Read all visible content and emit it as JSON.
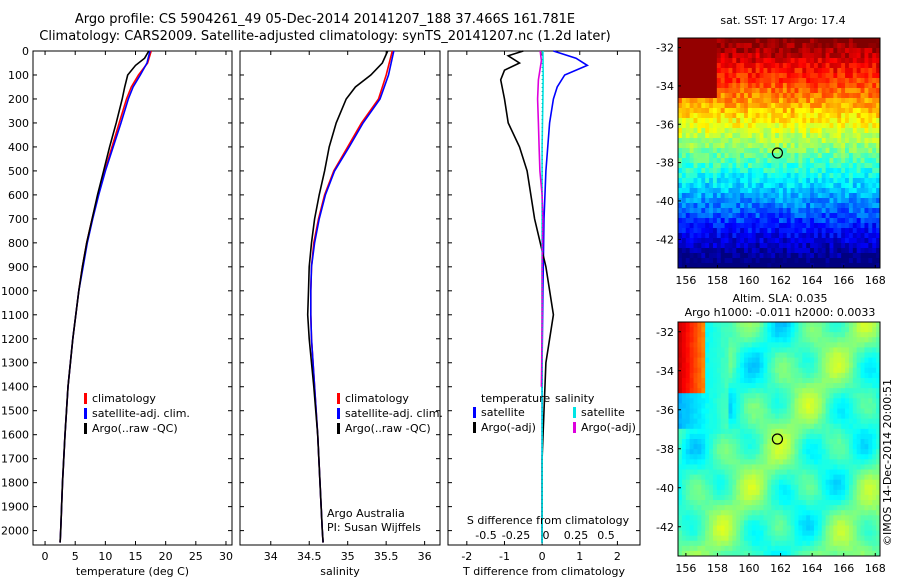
{
  "header": {
    "title_line1": "Argo profile: CS 5904261_49 05-Dec-2014 20141207_188 37.466S 161.781E",
    "title_line2": "Climatology: CARS2009. Satellite-adjusted climatology: synTS_20141207.nc (1.2d later)"
  },
  "side_label": "©IMOS 14-Dec-2014 20:00:51",
  "chart_data": [
    {
      "type": "line",
      "xlabel": "temperature (deg C)",
      "ylabel": "",
      "xlim": [
        -2,
        31
      ],
      "ylim": [
        2060,
        0
      ],
      "xticks": [
        0,
        5,
        10,
        15,
        20,
        25,
        30
      ],
      "yticks": [
        0,
        100,
        200,
        300,
        400,
        500,
        600,
        700,
        800,
        900,
        1000,
        1100,
        1200,
        1300,
        1400,
        1500,
        1600,
        1700,
        1800,
        1900,
        2000
      ],
      "legend": [
        "climatology",
        "satellite-adj. clim.",
        "Argo(..raw -QC)"
      ],
      "series": [
        {
          "name": "climatology",
          "color": "#ff0000",
          "depth": [
            0,
            50,
            100,
            150,
            200,
            300,
            400,
            500,
            600,
            700,
            800,
            900,
            1000,
            1200,
            1400,
            1600,
            1800,
            2000,
            2050
          ],
          "values": [
            17.6,
            17.0,
            15.5,
            14.3,
            13.5,
            12.3,
            11.1,
            9.9,
            8.8,
            7.8,
            6.9,
            6.2,
            5.6,
            4.6,
            3.8,
            3.3,
            2.9,
            2.6,
            2.5
          ]
        },
        {
          "name": "satellite-adj. clim.",
          "color": "#0000ff",
          "depth": [
            0,
            50,
            100,
            150,
            200,
            300,
            400,
            500,
            600,
            700,
            800,
            900,
            1000,
            1200,
            1400,
            1600,
            1800,
            2000,
            2050
          ],
          "values": [
            17.4,
            16.9,
            15.8,
            14.6,
            13.8,
            12.6,
            11.3,
            10.0,
            8.9,
            7.9,
            7.0,
            6.3,
            5.6,
            4.6,
            3.8,
            3.3,
            2.9,
            2.6,
            2.5
          ]
        },
        {
          "name": "Argo(..raw -QC)",
          "color": "#000000",
          "depth": [
            0,
            30,
            60,
            100,
            150,
            200,
            300,
            400,
            500,
            600,
            700,
            800,
            900,
            1000,
            1200,
            1400,
            1600,
            1800,
            2000,
            2050
          ],
          "values": [
            17.2,
            16.5,
            15.0,
            13.7,
            13.2,
            12.8,
            11.8,
            10.7,
            9.7,
            8.7,
            7.8,
            6.9,
            6.2,
            5.6,
            4.6,
            3.8,
            3.3,
            2.9,
            2.6,
            2.5
          ]
        }
      ]
    },
    {
      "type": "line",
      "xlabel": "salinity",
      "xlim": [
        33.6,
        36.2
      ],
      "ylim": [
        2060,
        0
      ],
      "xticks": [
        34,
        34.5,
        35,
        35.5,
        36
      ],
      "legend": [
        "climatology",
        "satellite-adj. clim.",
        "Argo(..raw -QC)"
      ],
      "annotations": [
        "Argo Australia",
        "PI: Susan Wijffels"
      ],
      "series": [
        {
          "name": "climatology",
          "color": "#ff0000",
          "depth": [
            0,
            100,
            200,
            300,
            400,
            500,
            600,
            700,
            800,
            900,
            1000,
            1100,
            1200,
            1400,
            1600,
            1800,
            2000,
            2050
          ],
          "values": [
            35.58,
            35.5,
            35.4,
            35.18,
            35.0,
            34.82,
            34.7,
            34.62,
            34.56,
            34.53,
            34.52,
            34.52,
            34.53,
            34.57,
            34.61,
            34.64,
            34.67,
            34.68
          ]
        },
        {
          "name": "satellite-adj. clim.",
          "color": "#0000ff",
          "depth": [
            0,
            100,
            200,
            300,
            400,
            500,
            600,
            700,
            800,
            900,
            1000,
            1100,
            1200,
            1400,
            1600,
            1800,
            2000,
            2050
          ],
          "values": [
            35.6,
            35.53,
            35.42,
            35.2,
            35.02,
            34.83,
            34.71,
            34.63,
            34.57,
            34.53,
            34.52,
            34.52,
            34.53,
            34.57,
            34.61,
            34.64,
            34.67,
            34.68
          ]
        },
        {
          "name": "Argo(..raw -QC)",
          "color": "#000000",
          "depth": [
            0,
            50,
            100,
            150,
            200,
            300,
            400,
            500,
            600,
            700,
            800,
            900,
            1000,
            1100,
            1200,
            1400,
            1600,
            1800,
            2000,
            2050
          ],
          "values": [
            35.52,
            35.45,
            35.3,
            35.1,
            34.98,
            34.85,
            34.76,
            34.7,
            34.63,
            34.57,
            34.53,
            34.5,
            34.49,
            34.48,
            34.5,
            34.56,
            34.61,
            34.64,
            34.67,
            34.68
          ]
        }
      ]
    },
    {
      "type": "line",
      "xlabel": "T difference from climatology",
      "top_label": "S difference from climatology",
      "xlim": [
        -2.5,
        2.6
      ],
      "ylim": [
        2060,
        0
      ],
      "xticks": [
        -2,
        -1,
        0,
        1,
        2
      ],
      "top_ticks": [
        "-0.5",
        "-0.25",
        "0",
        "0.25",
        "0.5"
      ],
      "legend_temperature": {
        "title": "temperature",
        "items": [
          "satellite",
          "Argo(-adj)"
        ]
      },
      "legend_salinity": {
        "title": "salinity",
        "items": [
          "satellite",
          "Argo(-adj)"
        ]
      },
      "series": [
        {
          "name": "T satellite",
          "color": "#0000ff",
          "depth": [
            0,
            30,
            60,
            100,
            150,
            200,
            300,
            500,
            700,
            1000,
            1300,
            1600,
            2000,
            2050
          ],
          "values": [
            0.3,
            0.9,
            1.2,
            0.6,
            0.4,
            0.3,
            0.2,
            0.1,
            0.05,
            0.02,
            0.0,
            0.0,
            0.0,
            0.0
          ]
        },
        {
          "name": "T Argo(-adj)",
          "color": "#000000",
          "depth": [
            0,
            20,
            50,
            80,
            120,
            200,
            300,
            400,
            500,
            700,
            900,
            1100,
            1300,
            1500,
            1700,
            1900,
            2050
          ],
          "values": [
            -0.5,
            -0.9,
            -0.6,
            -1.0,
            -1.1,
            -1.0,
            -0.9,
            -0.6,
            -0.4,
            -0.2,
            0.1,
            0.3,
            0.1,
            0.05,
            0.0,
            0.0,
            0.0
          ]
        },
        {
          "name": "S satellite",
          "color": "#00e5e5",
          "depth": [
            0,
            100,
            200,
            300,
            400,
            500,
            700,
            900,
            1200,
            1500,
            1800,
            2050
          ],
          "values": [
            0.02,
            0.03,
            0.02,
            0.01,
            0.0,
            0.0,
            0.0,
            0.0,
            0.0,
            0.0,
            0.0,
            0.0
          ]
        },
        {
          "name": "S Argo(-adj)",
          "color": "#dd00dd",
          "depth": [
            0,
            40,
            80,
            120,
            200,
            300,
            400,
            500,
            600,
            700,
            900,
            1100,
            1300,
            1400
          ],
          "values": [
            -0.05,
            -0.02,
            -0.06,
            -0.1,
            -0.12,
            -0.1,
            -0.08,
            -0.06,
            0.0,
            0.02,
            0.0,
            0.0,
            -0.01,
            -0.02
          ]
        }
      ]
    },
    {
      "type": "heatmap",
      "title": "sat. SST: 17 Argo: 17.4",
      "xlim": [
        155.5,
        168.3
      ],
      "ylim": [
        -43.5,
        -31.5
      ],
      "xticks": [
        156,
        158,
        160,
        162,
        164,
        166,
        168
      ],
      "yticks": [
        -32,
        -34,
        -36,
        -38,
        -40,
        -42
      ],
      "marker": {
        "lon": 161.8,
        "lat": -37.5
      }
    },
    {
      "type": "heatmap",
      "title_line1": "Altim. SLA: 0.035",
      "title_line2": "Argo h1000: -0.011 h2000: 0.0033",
      "xlim": [
        155.5,
        168.3
      ],
      "ylim": [
        -43.5,
        -31.5
      ],
      "xticks": [
        156,
        158,
        160,
        162,
        164,
        166,
        168
      ],
      "yticks": [
        -32,
        -34,
        -36,
        -38,
        -40,
        -42
      ],
      "marker": {
        "lon": 161.8,
        "lat": -37.5
      }
    }
  ]
}
